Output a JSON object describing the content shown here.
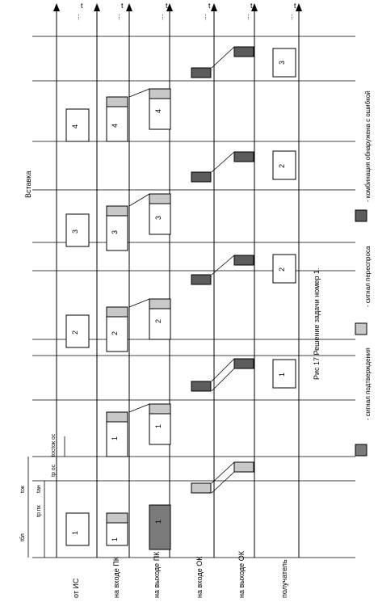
{
  "rows": [
    {
      "label": "от ИС"
    },
    {
      "label": "на входе ПК"
    },
    {
      "label": "на выходе ПК"
    },
    {
      "label": "на входе ОК"
    },
    {
      "label": "на выходе ОК"
    },
    {
      "label": "получатель"
    }
  ],
  "time_axis_label": "t",
  "ellipsis": "...",
  "insert_label": "Вставка",
  "caption": "Рис 17 Решение задачи номер 1.",
  "legend": [
    {
      "text": "- сигнал подтверждения",
      "color": "#7a7a7a"
    },
    {
      "text": "- сигнал переспроса",
      "color": "#c8c8c8"
    },
    {
      "text": "- комбинация обнаружена с ошибкой",
      "color": "#5c5c5c"
    }
  ],
  "timing_labels": {
    "t_bl": "tбл",
    "t_ok": "tок",
    "t_r_pk": "tр пк",
    "t_an": "tан",
    "t_r_os": "tр ос",
    "t_os": "tос",
    "t_ok_os": "tок ос"
  },
  "block_numbers": {
    "source": [
      "1",
      "2",
      "3",
      "4"
    ],
    "pk_in": [
      "1",
      "1",
      "2",
      "3",
      "4"
    ],
    "pk_out": [
      "1",
      "1",
      "2",
      "3",
      "4"
    ],
    "receiver": [
      "1",
      "2",
      "2",
      "3"
    ]
  }
}
